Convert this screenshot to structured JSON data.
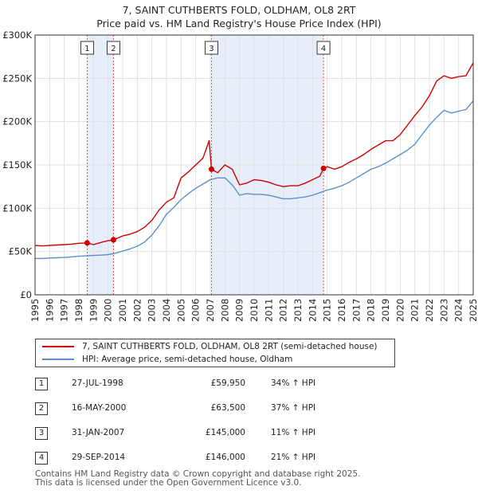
{
  "chart_data": {
    "type": "line",
    "title": "7, SAINT CUTHBERTS FOLD, OLDHAM, OL8 2RT",
    "subtitle": "Price paid vs. HM Land Registry's House Price Index (HPI)",
    "xlabel": "",
    "ylabel": "",
    "xlim": [
      1995,
      2025
    ],
    "ylim": [
      0,
      300000
    ],
    "x_ticks": [
      1995,
      1996,
      1997,
      1998,
      1999,
      2000,
      2001,
      2002,
      2003,
      2004,
      2005,
      2006,
      2007,
      2008,
      2009,
      2010,
      2011,
      2012,
      2013,
      2014,
      2015,
      2016,
      2017,
      2018,
      2019,
      2020,
      2021,
      2022,
      2023,
      2024,
      2025
    ],
    "y_ticks": [
      {
        "value": 0,
        "label": "£0"
      },
      {
        "value": 50000,
        "label": "£50K"
      },
      {
        "value": 100000,
        "label": "£100K"
      },
      {
        "value": 150000,
        "label": "£150K"
      },
      {
        "value": 200000,
        "label": "£200K"
      },
      {
        "value": 250000,
        "label": "£250K"
      },
      {
        "value": 300000,
        "label": "£300K"
      }
    ],
    "grid": true,
    "colors": {
      "property": "#cc0000",
      "hpi": "#5a8fd0",
      "shade": "#e8eef9",
      "vline": "#e05050",
      "grid": "#e0e0e0"
    },
    "series": [
      {
        "name": "7, SAINT CUTHBERTS FOLD, OLDHAM, OL8 2RT (semi-detached house)",
        "color": "#cc0000",
        "x": [
          1995.0,
          1995.5,
          1996.0,
          1996.5,
          1997.0,
          1997.5,
          1998.0,
          1998.57,
          1999.0,
          1999.5,
          2000.0,
          2000.37,
          2001.0,
          2001.5,
          2002.0,
          2002.5,
          2003.0,
          2003.5,
          2004.0,
          2004.5,
          2005.0,
          2005.5,
          2006.0,
          2006.5,
          2006.92,
          2007.08,
          2007.5,
          2008.0,
          2008.5,
          2009.0,
          2009.5,
          2010.0,
          2010.5,
          2011.0,
          2011.5,
          2012.0,
          2012.5,
          2013.0,
          2013.5,
          2014.0,
          2014.5,
          2014.75,
          2015.0,
          2015.5,
          2016.0,
          2016.5,
          2017.0,
          2017.5,
          2018.0,
          2018.5,
          2019.0,
          2019.5,
          2020.0,
          2020.5,
          2021.0,
          2021.5,
          2022.0,
          2022.5,
          2023.0,
          2023.5,
          2024.0,
          2024.5,
          2025.0
        ],
        "y": [
          57000,
          56500,
          57000,
          57500,
          58000,
          58500,
          59500,
          59950,
          58000,
          60500,
          62500,
          63500,
          68000,
          70000,
          73000,
          78000,
          86000,
          98000,
          107000,
          112000,
          135000,
          142000,
          150000,
          158000,
          178000,
          145000,
          141000,
          150000,
          145000,
          127000,
          129000,
          133000,
          132000,
          130000,
          127000,
          125000,
          126000,
          126000,
          129000,
          133000,
          137000,
          146000,
          148000,
          145000,
          148000,
          153000,
          157000,
          162000,
          168000,
          173000,
          178000,
          178000,
          185000,
          196000,
          207000,
          217000,
          230000,
          247000,
          253000,
          250000,
          252000,
          253000,
          268000
        ]
      },
      {
        "name": "HPI: Average price, semi-detached house, Oldham",
        "color": "#5a8fd0",
        "x": [
          1995.0,
          1995.5,
          1996.0,
          1996.5,
          1997.0,
          1997.5,
          1998.0,
          1998.5,
          1999.0,
          1999.5,
          2000.0,
          2000.5,
          2001.0,
          2001.5,
          2002.0,
          2002.5,
          2003.0,
          2003.5,
          2004.0,
          2004.5,
          2005.0,
          2005.5,
          2006.0,
          2006.5,
          2007.0,
          2007.5,
          2008.0,
          2008.5,
          2009.0,
          2009.5,
          2010.0,
          2010.5,
          2011.0,
          2011.5,
          2012.0,
          2012.5,
          2013.0,
          2013.5,
          2014.0,
          2014.5,
          2015.0,
          2015.5,
          2016.0,
          2016.5,
          2017.0,
          2017.5,
          2018.0,
          2018.5,
          2019.0,
          2019.5,
          2020.0,
          2020.5,
          2021.0,
          2021.5,
          2022.0,
          2022.5,
          2023.0,
          2023.5,
          2024.0,
          2024.5,
          2025.0
        ],
        "y": [
          42000,
          42000,
          42500,
          42800,
          43200,
          43800,
          44500,
          45000,
          45500,
          45800,
          46500,
          48000,
          50500,
          53000,
          56000,
          61000,
          69000,
          80000,
          93000,
          101000,
          110000,
          117000,
          123000,
          128000,
          133000,
          135000,
          135000,
          127000,
          115000,
          117000,
          116000,
          116000,
          115000,
          113000,
          111000,
          111000,
          112000,
          113000,
          115000,
          118000,
          121000,
          123000,
          126000,
          130000,
          135000,
          140000,
          145000,
          148000,
          152000,
          157000,
          162000,
          167000,
          174000,
          185000,
          196000,
          205000,
          213000,
          210000,
          212000,
          214000,
          224000
        ]
      }
    ],
    "sales": [
      {
        "num": "1",
        "x": 1998.57,
        "price": 59950
      },
      {
        "num": "2",
        "x": 2000.37,
        "price": 63500
      },
      {
        "num": "3",
        "x": 2007.08,
        "price": 145000
      },
      {
        "num": "4",
        "x": 2014.75,
        "price": 146000
      }
    ],
    "shaded_ranges": [
      [
        1998.57,
        2000.37
      ],
      [
        2007.08,
        2014.75
      ]
    ]
  },
  "legend": {
    "property_label": "7, SAINT CUTHBERTS FOLD, OLDHAM, OL8 2RT (semi-detached house)",
    "hpi_label": "HPI: Average price, semi-detached house, Oldham"
  },
  "table": {
    "rows": [
      {
        "num": "1",
        "date": "27-JUL-1998",
        "price": "£59,950",
        "hpi": "34% ↑ HPI"
      },
      {
        "num": "2",
        "date": "16-MAY-2000",
        "price": "£63,500",
        "hpi": "37% ↑ HPI"
      },
      {
        "num": "3",
        "date": "31-JAN-2007",
        "price": "£145,000",
        "hpi": "11% ↑ HPI"
      },
      {
        "num": "4",
        "date": "29-SEP-2014",
        "price": "£146,000",
        "hpi": "21% ↑ HPI"
      }
    ]
  },
  "footer": {
    "line1": "Contains HM Land Registry data © Crown copyright and database right 2025.",
    "line2": "This data is licensed under the Open Government Licence v3.0."
  }
}
